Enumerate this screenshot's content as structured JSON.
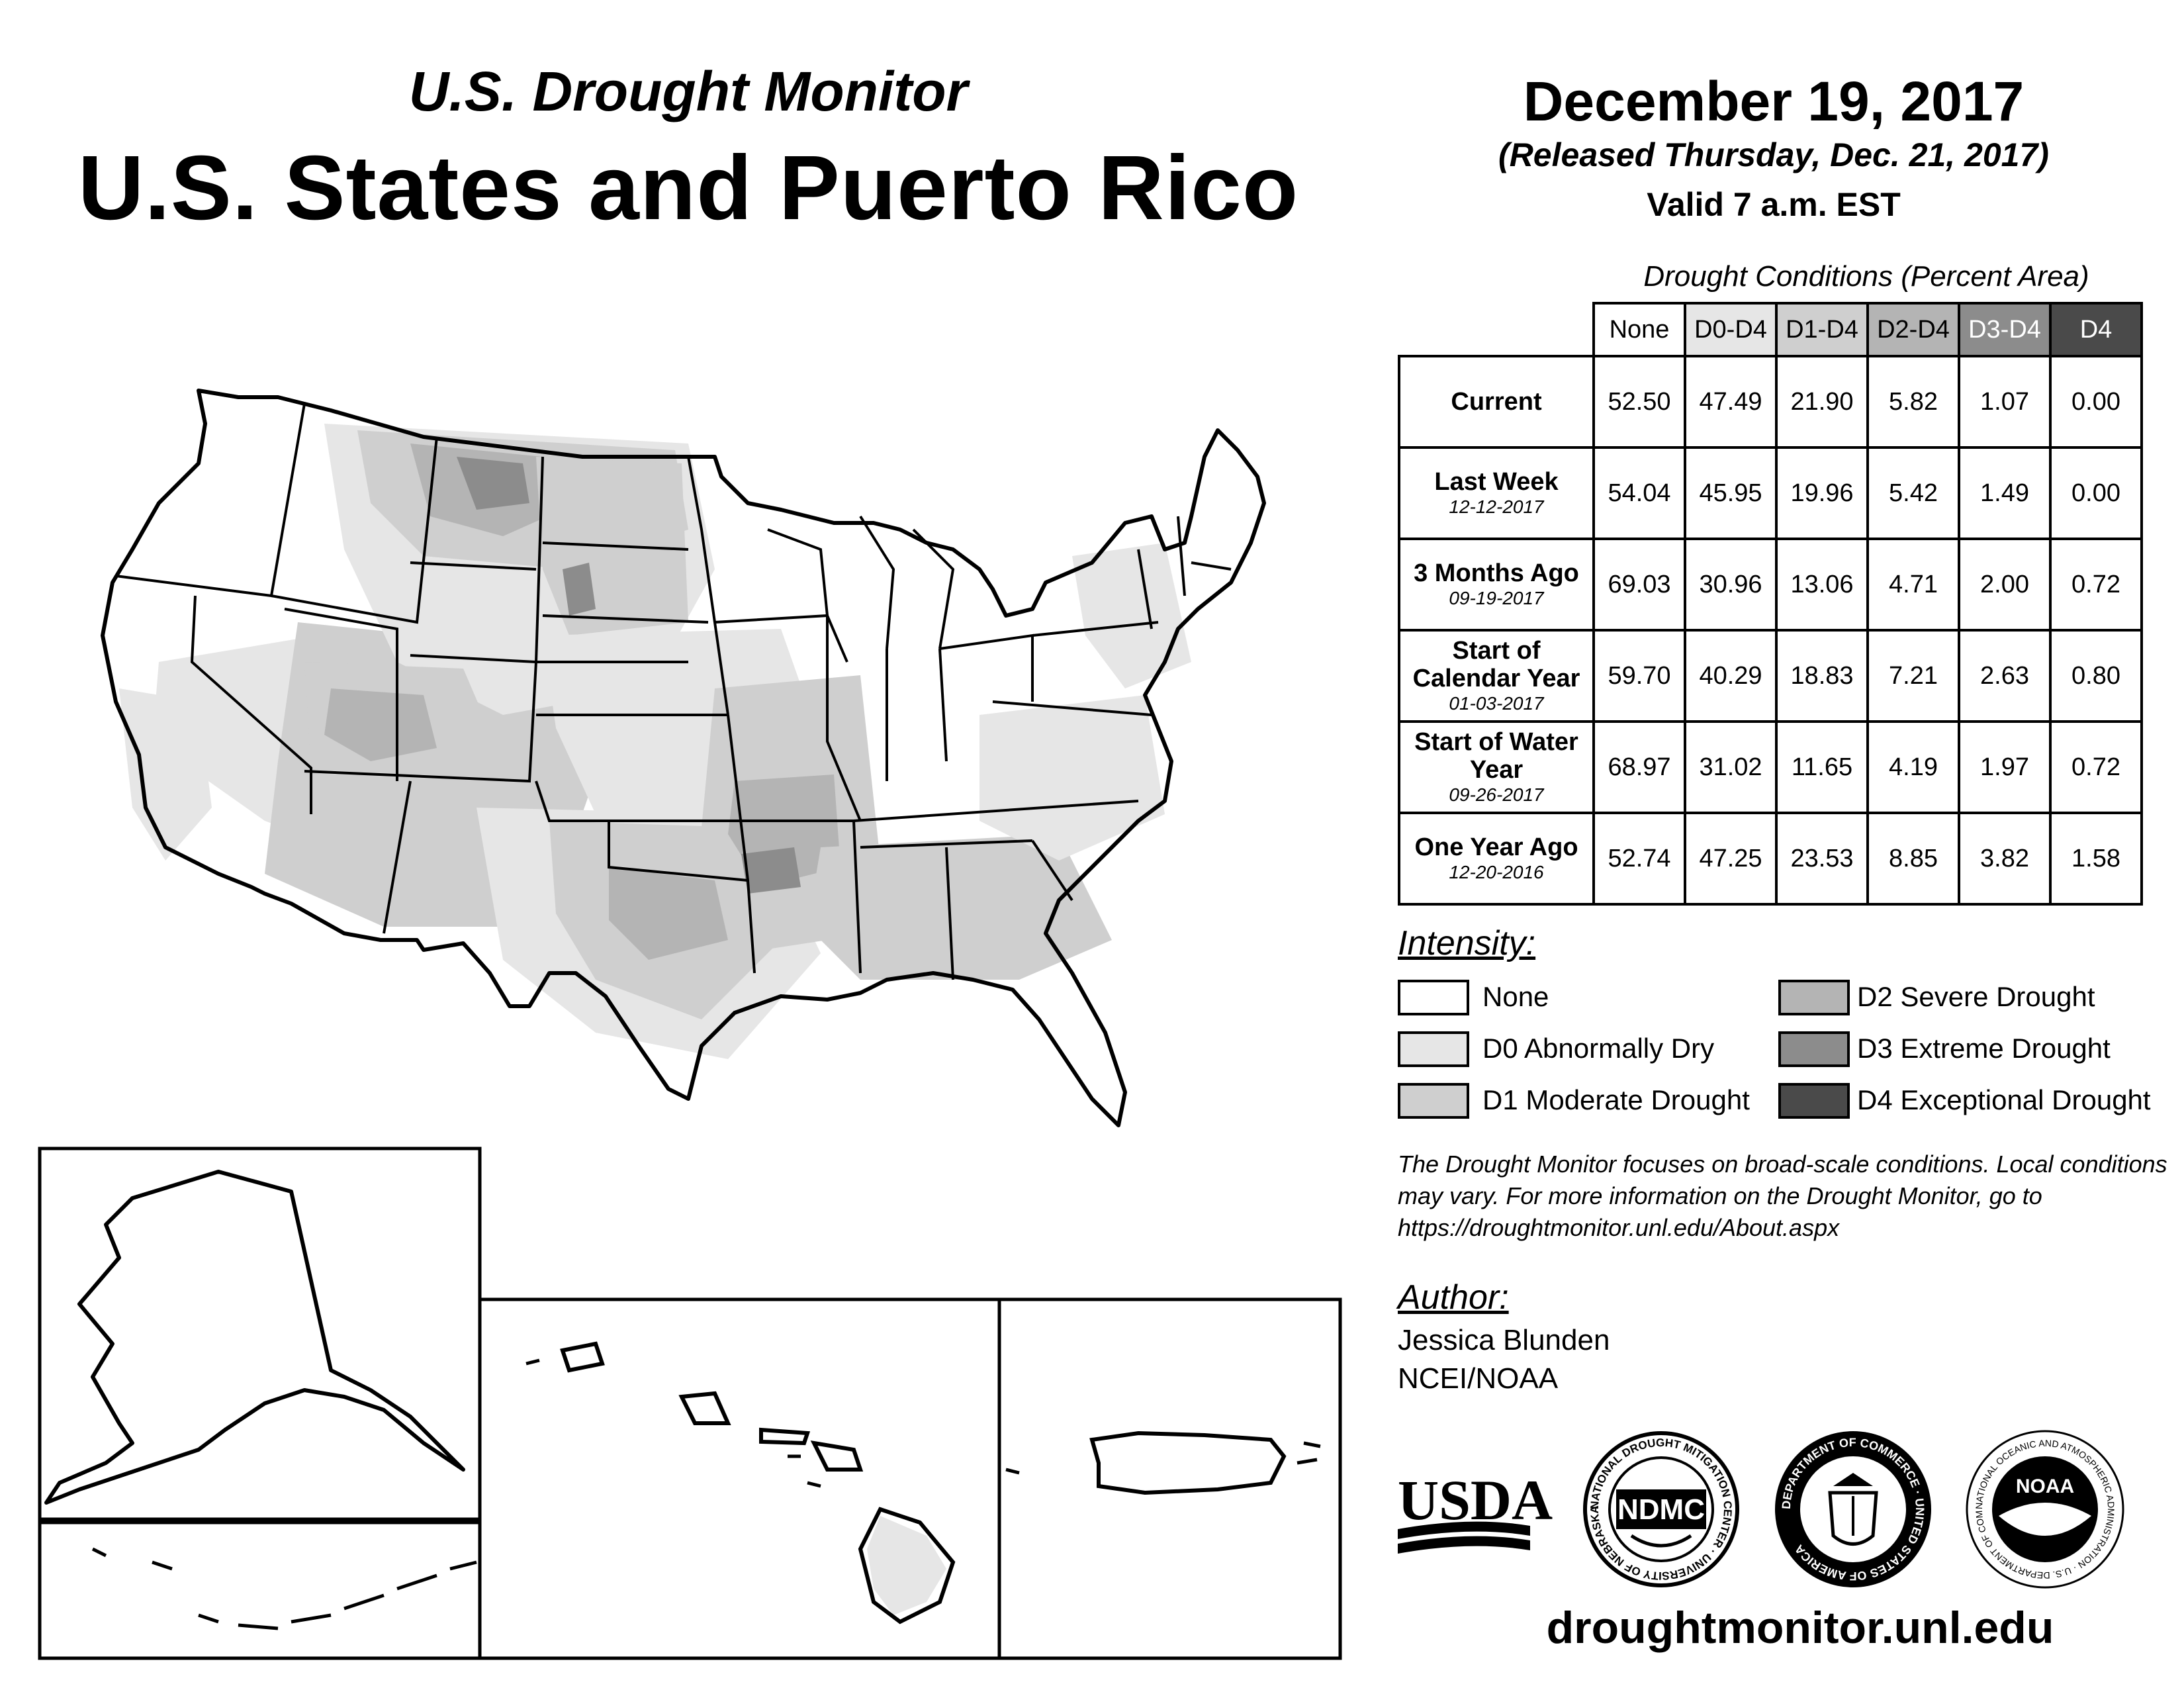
{
  "header": {
    "subtitle": "U.S. Drought Monitor",
    "title": "U.S. States and Puerto Rico",
    "date": "December 19, 2017",
    "released": "(Released Thursday, Dec. 21, 2017)",
    "valid": "Valid 7 a.m. EST"
  },
  "table": {
    "caption": "Drought Conditions (Percent Area)",
    "columns": [
      "None",
      "D0-D4",
      "D1-D4",
      "D2-D4",
      "D3-D4",
      "D4"
    ],
    "column_colors": [
      "#ffffff",
      "#e6e6e6",
      "#cfcfcf",
      "#b4b4b4",
      "#8c8c8c",
      "#4a4a4a"
    ],
    "rows": [
      {
        "label": "Current",
        "date": "",
        "values": [
          "52.50",
          "47.49",
          "21.90",
          "5.82",
          "1.07",
          "0.00"
        ]
      },
      {
        "label": "Last Week",
        "date": "12-12-2017",
        "values": [
          "54.04",
          "45.95",
          "19.96",
          "5.42",
          "1.49",
          "0.00"
        ]
      },
      {
        "label": "3 Months Ago",
        "date": "09-19-2017",
        "values": [
          "69.03",
          "30.96",
          "13.06",
          "4.71",
          "2.00",
          "0.72"
        ]
      },
      {
        "label": "Start of Calendar Year",
        "date": "01-03-2017",
        "values": [
          "59.70",
          "40.29",
          "18.83",
          "7.21",
          "2.63",
          "0.80"
        ]
      },
      {
        "label": "Start of Water Year",
        "date": "09-26-2017",
        "values": [
          "68.97",
          "31.02",
          "11.65",
          "4.19",
          "1.97",
          "0.72"
        ]
      },
      {
        "label": "One Year Ago",
        "date": "12-20-2016",
        "values": [
          "52.74",
          "47.25",
          "23.53",
          "8.85",
          "3.82",
          "1.58"
        ]
      }
    ]
  },
  "legend": {
    "title": "Intensity:",
    "items": [
      {
        "label": "None",
        "color": "#ffffff"
      },
      {
        "label": "D0 Abnormally Dry",
        "color": "#e6e6e6"
      },
      {
        "label": "D1 Moderate Drought",
        "color": "#cfcfcf"
      },
      {
        "label": "D2 Severe Drought",
        "color": "#b4b4b4"
      },
      {
        "label": "D3 Extreme Drought",
        "color": "#8c8c8c"
      },
      {
        "label": "D4 Exceptional Drought",
        "color": "#4a4a4a"
      }
    ]
  },
  "note": "The Drought Monitor focuses on broad-scale conditions. Local conditions may vary. For more information on the Drought Monitor, go to https://droughtmonitor.unl.edu/About.aspx",
  "author": {
    "title": "Author:",
    "name": "Jessica Blunden",
    "org": "NCEI/NOAA"
  },
  "logos": {
    "usda": "USDA",
    "ndmc": "NDMC",
    "ndmc_ring": "NATIONAL DROUGHT MITIGATION CENTER · UNIVERSITY OF NEBRASKA",
    "commerce_ring": "DEPARTMENT OF COMMERCE · UNITED STATES OF AMERICA",
    "noaa": "NOAA",
    "noaa_ring": "NATIONAL OCEANIC AND ATMOSPHERIC ADMINISTRATION · U.S. DEPARTMENT OF COMMERCE"
  },
  "website": "droughtmonitor.unl.edu"
}
